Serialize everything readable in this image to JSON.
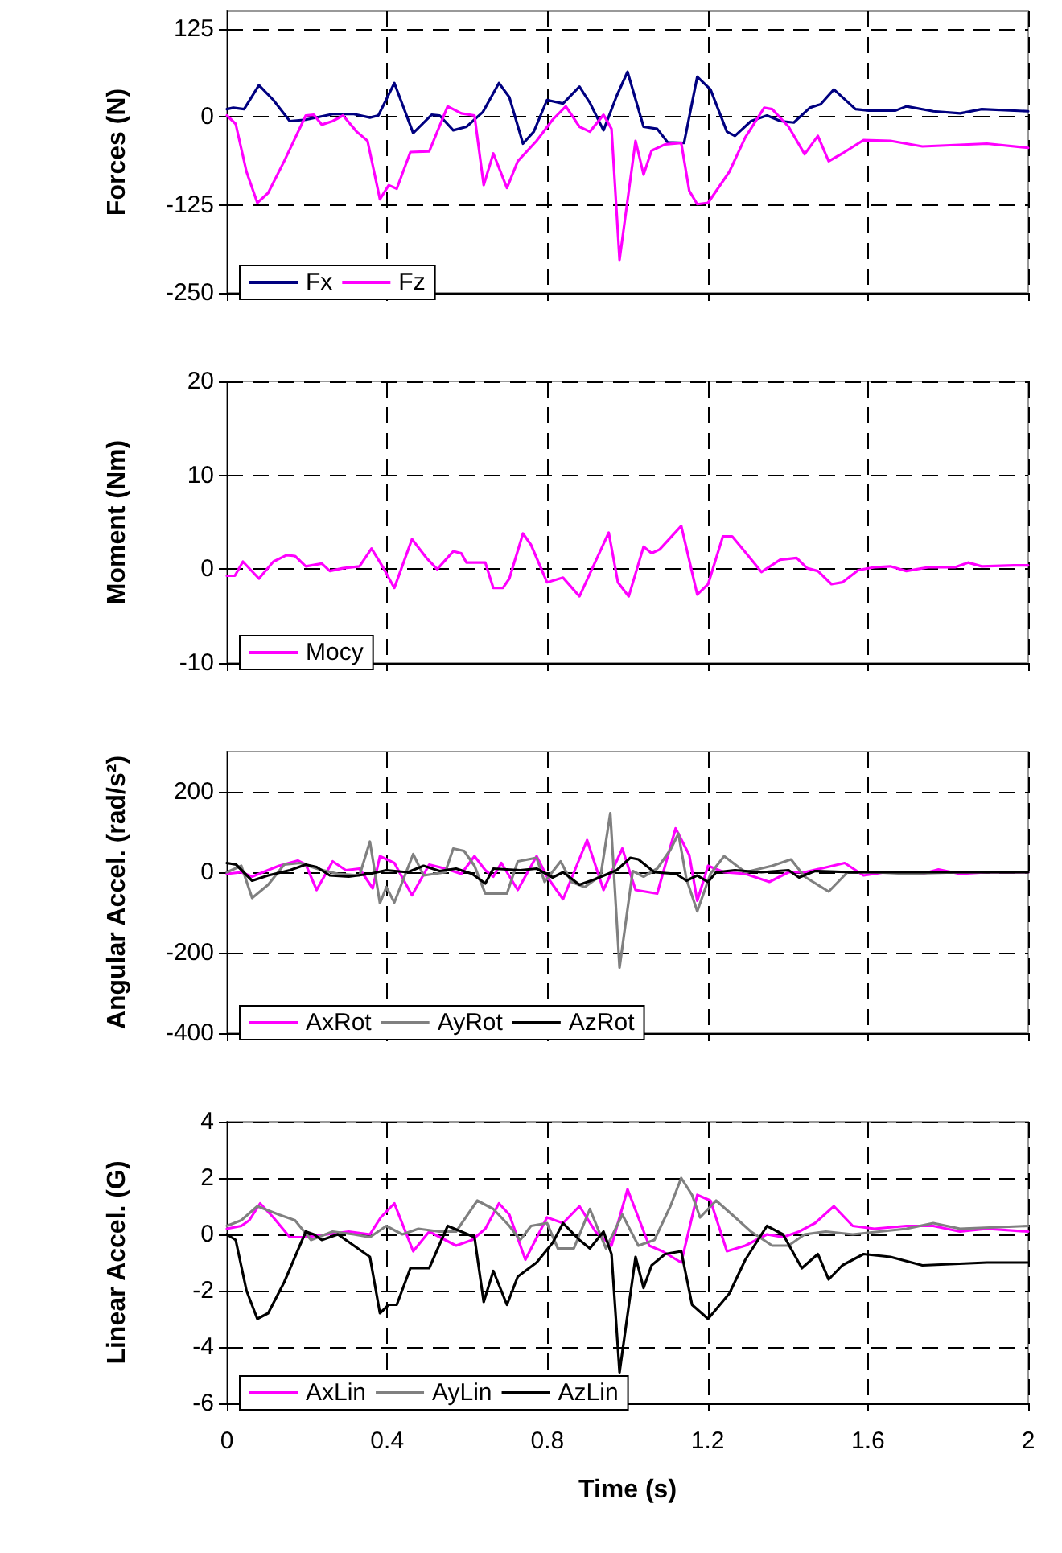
{
  "chart_data": [
    {
      "type": "line",
      "ylabel": "Forces (N)",
      "xlim": [
        0,
        2
      ],
      "xticks": [
        0,
        0.4,
        0.8,
        1.2,
        1.6,
        2
      ],
      "ylim": [
        -250,
        150
      ],
      "yticks": [
        -250,
        -125,
        0,
        125
      ],
      "grid": true,
      "legend": "bottom left",
      "tick_labels": "y",
      "marker": "none",
      "line_style": "solid",
      "series": [
        {
          "name": "Fx",
          "color": "#000080",
          "x": [
            0,
            0.016,
            0.043,
            0.08,
            0.116,
            0.157,
            0.197,
            0.264,
            0.317,
            0.357,
            0.378,
            0.418,
            0.465,
            0.511,
            0.531,
            0.565,
            0.598,
            0.639,
            0.679,
            0.705,
            0.739,
            0.766,
            0.799,
            0.839,
            0.88,
            0.906,
            0.94,
            0.973,
            1.0,
            1.04,
            1.074,
            1.1,
            1.141,
            1.174,
            1.207,
            1.248,
            1.268,
            1.308,
            1.348,
            1.382,
            1.415,
            1.455,
            1.482,
            1.515,
            1.569,
            1.602,
            1.669,
            1.696,
            1.763,
            1.83,
            1.884,
            2.0
          ],
          "values": [
            11,
            13,
            11,
            45,
            24,
            -6,
            -4,
            4,
            4,
            -1,
            2,
            48,
            -23,
            3,
            2,
            -19,
            -14,
            7,
            48,
            28,
            -38,
            -21,
            24,
            19,
            43,
            20,
            -19,
            30,
            64,
            -14,
            -17,
            -36,
            -37,
            57,
            39,
            -21,
            -27,
            -6,
            2,
            -6,
            -8,
            13,
            18,
            39,
            11,
            9,
            9,
            15,
            8,
            5,
            11,
            8
          ]
        },
        {
          "name": "Fz",
          "color": "#ff00ff",
          "x": [
            0,
            0.022,
            0.049,
            0.076,
            0.103,
            0.143,
            0.197,
            0.217,
            0.237,
            0.264,
            0.29,
            0.324,
            0.351,
            0.382,
            0.404,
            0.424,
            0.458,
            0.505,
            0.551,
            0.585,
            0.618,
            0.641,
            0.665,
            0.699,
            0.726,
            0.773,
            0.813,
            0.846,
            0.88,
            0.906,
            0.94,
            0.96,
            0.98,
            1.02,
            1.04,
            1.06,
            1.094,
            1.134,
            1.154,
            1.174,
            1.201,
            1.254,
            1.294,
            1.341,
            1.361,
            1.402,
            1.442,
            1.475,
            1.502,
            1.536,
            1.589,
            1.656,
            1.736,
            1.897,
            2.0
          ],
          "values": [
            2,
            -10,
            -78,
            -122,
            -108,
            -63,
            2,
            3,
            -11,
            -6,
            2,
            -21,
            -34,
            -117,
            -97,
            -102,
            -50,
            -49,
            15,
            5,
            2,
            -97,
            -52,
            -101,
            -63,
            -34,
            -4,
            15,
            -14,
            -21,
            3,
            -17,
            -203,
            -34,
            -82,
            -48,
            -39,
            -37,
            -105,
            -124,
            -122,
            -78,
            -29,
            13,
            11,
            -14,
            -53,
            -27,
            -63,
            -52,
            -33,
            -34,
            -42,
            -38,
            -44
          ]
        }
      ]
    },
    {
      "type": "line",
      "ylabel": "Moment (Nm)",
      "xlim": [
        0,
        2
      ],
      "xticks": [
        0,
        0.4,
        0.8,
        1.2,
        1.6,
        2
      ],
      "ylim": [
        -10,
        20
      ],
      "yticks": [
        -10,
        0,
        10,
        20
      ],
      "grid": true,
      "legend": "bottom left",
      "tick_labels": "y",
      "marker": "none",
      "line_style": "solid",
      "series": [
        {
          "name": "Mocy",
          "color": "#ff00ff",
          "x": [
            0,
            0.02,
            0.04,
            0.08,
            0.116,
            0.149,
            0.17,
            0.197,
            0.237,
            0.257,
            0.29,
            0.331,
            0.361,
            0.391,
            0.418,
            0.462,
            0.498,
            0.525,
            0.565,
            0.585,
            0.598,
            0.645,
            0.665,
            0.689,
            0.705,
            0.739,
            0.759,
            0.799,
            0.839,
            0.88,
            0.953,
            0.976,
            1.003,
            1.04,
            1.06,
            1.08,
            1.134,
            1.174,
            1.201,
            1.238,
            1.261,
            1.294,
            1.334,
            1.381,
            1.422,
            1.448,
            1.475,
            1.509,
            1.536,
            1.576,
            1.616,
            1.656,
            1.696,
            1.75,
            1.817,
            1.85,
            1.884,
            1.964,
            2.0
          ],
          "values": [
            -0.7,
            -0.7,
            0.8,
            -1.0,
            0.8,
            1.5,
            1.4,
            0.3,
            0.6,
            -0.2,
            0.1,
            0.3,
            2.2,
            0.1,
            -2.0,
            3.2,
            1.2,
            0.0,
            1.9,
            1.7,
            0.7,
            0.7,
            -2.0,
            -2.0,
            -1.0,
            3.8,
            2.6,
            -1.4,
            -0.9,
            -2.9,
            3.9,
            -1.4,
            -2.9,
            2.4,
            1.7,
            2.1,
            4.6,
            -2.7,
            -1.6,
            3.5,
            3.5,
            1.8,
            -0.3,
            1.0,
            1.2,
            0.1,
            -0.2,
            -1.6,
            -1.4,
            -0.1,
            0.2,
            0.3,
            -0.2,
            0.2,
            0.2,
            0.7,
            0.3,
            0.4,
            0.4
          ]
        }
      ]
    },
    {
      "type": "line",
      "ylabel": "Angular Accel. (rad/s²)",
      "xlim": [
        0,
        2
      ],
      "xticks": [
        0,
        0.4,
        0.8,
        1.2,
        1.6,
        2
      ],
      "ylim": [
        -400,
        300
      ],
      "yticks": [
        -400,
        -200,
        0,
        200
      ],
      "grid": true,
      "legend": "bottom left",
      "tick_labels": "y",
      "marker": "none",
      "line_style": "solid",
      "series": [
        {
          "name": "AxRot",
          "color": "#ff00ff",
          "x": [
            0,
            0.036,
            0.063,
            0.09,
            0.13,
            0.177,
            0.197,
            0.224,
            0.264,
            0.297,
            0.331,
            0.364,
            0.382,
            0.418,
            0.462,
            0.505,
            0.545,
            0.585,
            0.618,
            0.645,
            0.665,
            0.685,
            0.726,
            0.773,
            0.799,
            0.839,
            0.899,
            0.94,
            0.987,
            1.02,
            1.074,
            1.12,
            1.154,
            1.174,
            1.201,
            1.241,
            1.294,
            1.354,
            1.402,
            1.442,
            1.482,
            1.542,
            1.589,
            1.643,
            1.736,
            1.776,
            1.83,
            1.897,
            2.0
          ],
          "values": [
            -4,
            0,
            -11,
            0,
            16,
            29,
            19,
            -44,
            27,
            5,
            9,
            -40,
            40,
            23,
            -57,
            19,
            9,
            -4,
            40,
            5,
            -11,
            23,
            -44,
            40,
            -11,
            -67,
            80,
            -44,
            59,
            -44,
            -53,
            109,
            43,
            -71,
            16,
            0,
            -4,
            -24,
            0,
            0,
            9,
            23,
            -8,
            0,
            -4,
            7,
            -4,
            0,
            0
          ]
        },
        {
          "name": "AyRot",
          "color": "#808080",
          "x": [
            0,
            0.036,
            0.063,
            0.103,
            0.143,
            0.183,
            0.224,
            0.277,
            0.331,
            0.357,
            0.382,
            0.398,
            0.418,
            0.465,
            0.491,
            0.545,
            0.565,
            0.592,
            0.618,
            0.645,
            0.699,
            0.726,
            0.773,
            0.793,
            0.833,
            0.86,
            0.893,
            0.933,
            0.957,
            0.98,
            1.013,
            1.04,
            1.074,
            1.107,
            1.127,
            1.147,
            1.174,
            1.207,
            1.241,
            1.294,
            1.361,
            1.408,
            1.442,
            1.502,
            1.549,
            1.616,
            1.696,
            1.83,
            2.0
          ],
          "values": [
            0,
            16,
            -64,
            -31,
            19,
            23,
            9,
            -4,
            -8,
            76,
            -77,
            -37,
            -75,
            45,
            -8,
            0,
            59,
            53,
            16,
            -53,
            -53,
            27,
            36,
            -24,
            27,
            -24,
            -37,
            -8,
            147,
            -237,
            3,
            -11,
            9,
            56,
            96,
            -17,
            -97,
            -4,
            40,
            0,
            16,
            32,
            -11,
            -48,
            0,
            0,
            -4,
            0,
            0
          ]
        },
        {
          "name": "AzRot",
          "color": "#000000",
          "x": [
            0,
            0.023,
            0.063,
            0.103,
            0.157,
            0.197,
            0.224,
            0.257,
            0.304,
            0.357,
            0.398,
            0.451,
            0.491,
            0.531,
            0.572,
            0.612,
            0.645,
            0.665,
            0.732,
            0.773,
            0.813,
            0.839,
            0.88,
            0.92,
            0.973,
            1.007,
            1.027,
            1.067,
            1.121,
            1.147,
            1.174,
            1.201,
            1.221,
            1.268,
            1.334,
            1.402,
            1.428,
            1.468,
            1.562,
            1.696,
            2.0
          ],
          "values": [
            23,
            19,
            -21,
            -8,
            5,
            19,
            13,
            -8,
            -11,
            -4,
            5,
            0,
            16,
            3,
            9,
            -4,
            -28,
            9,
            5,
            9,
            -13,
            0,
            -31,
            -17,
            5,
            36,
            32,
            0,
            -4,
            -21,
            -8,
            -24,
            0,
            5,
            0,
            5,
            -13,
            3,
            0,
            0,
            0
          ]
        }
      ]
    },
    {
      "type": "line",
      "xlabel": "Time (s)",
      "ylabel": "Linear Accel. (G)",
      "xlim": [
        0,
        2
      ],
      "xticks": [
        0,
        0.4,
        0.8,
        1.2,
        1.6,
        2
      ],
      "ylim": [
        -6,
        4
      ],
      "yticks": [
        -6,
        -4,
        -2,
        0,
        2,
        4
      ],
      "grid": true,
      "legend": "bottom left",
      "marker": "none",
      "line_style": "solid",
      "series": [
        {
          "name": "AxLin",
          "color": "#ff00ff",
          "x": [
            0,
            0.036,
            0.056,
            0.083,
            0.116,
            0.157,
            0.197,
            0.25,
            0.304,
            0.357,
            0.384,
            0.418,
            0.465,
            0.505,
            0.545,
            0.572,
            0.612,
            0.645,
            0.679,
            0.705,
            0.745,
            0.799,
            0.839,
            0.88,
            0.92,
            0.96,
            1.0,
            1.054,
            1.087,
            1.134,
            1.174,
            1.207,
            1.248,
            1.294,
            1.348,
            1.388,
            1.428,
            1.468,
            1.515,
            1.562,
            1.616,
            1.696,
            1.763,
            1.83,
            1.897,
            2.0
          ],
          "values": [
            0.2,
            0.3,
            0.5,
            1.1,
            0.6,
            -0.1,
            -0.1,
            0.0,
            0.1,
            0.0,
            0.6,
            1.1,
            -0.6,
            0.1,
            -0.2,
            -0.4,
            -0.2,
            0.2,
            1.1,
            0.7,
            -0.9,
            0.6,
            0.4,
            1.0,
            0.1,
            -0.4,
            1.6,
            -0.4,
            -0.6,
            -1.0,
            1.4,
            1.2,
            -0.6,
            -0.4,
            0.0,
            -0.1,
            0.1,
            0.4,
            1.0,
            0.3,
            0.2,
            0.3,
            0.3,
            0.1,
            0.2,
            0.1
          ]
        },
        {
          "name": "AyLin",
          "color": "#808080",
          "x": [
            0,
            0.036,
            0.076,
            0.13,
            0.17,
            0.21,
            0.264,
            0.317,
            0.357,
            0.398,
            0.438,
            0.478,
            0.531,
            0.572,
            0.625,
            0.665,
            0.705,
            0.732,
            0.759,
            0.799,
            0.826,
            0.866,
            0.906,
            0.946,
            0.987,
            1.027,
            1.067,
            1.107,
            1.134,
            1.161,
            1.181,
            1.221,
            1.261,
            1.308,
            1.361,
            1.402,
            1.442,
            1.495,
            1.562,
            1.696,
            1.763,
            1.83,
            2.0
          ],
          "values": [
            0.3,
            0.5,
            1.0,
            0.7,
            0.5,
            -0.2,
            0.1,
            0.0,
            -0.1,
            0.3,
            0.0,
            0.2,
            0.1,
            0.1,
            1.2,
            0.9,
            0.3,
            -0.2,
            0.3,
            0.4,
            -0.5,
            -0.5,
            0.9,
            -0.5,
            0.7,
            -0.4,
            -0.2,
            1.0,
            2.0,
            1.4,
            0.6,
            1.2,
            0.7,
            0.1,
            -0.4,
            -0.4,
            0.0,
            0.1,
            0.0,
            0.2,
            0.4,
            0.2,
            0.3
          ]
        },
        {
          "name": "AzLin",
          "color": "#000000",
          "x": [
            0,
            0.022,
            0.049,
            0.076,
            0.103,
            0.143,
            0.197,
            0.217,
            0.237,
            0.277,
            0.317,
            0.357,
            0.382,
            0.404,
            0.424,
            0.458,
            0.505,
            0.551,
            0.585,
            0.618,
            0.641,
            0.665,
            0.699,
            0.726,
            0.773,
            0.813,
            0.839,
            0.88,
            0.906,
            0.94,
            0.96,
            0.98,
            1.02,
            1.04,
            1.06,
            1.094,
            1.134,
            1.161,
            1.201,
            1.254,
            1.294,
            1.348,
            1.388,
            1.435,
            1.475,
            1.502,
            1.536,
            1.589,
            1.656,
            1.736,
            1.897,
            2.0
          ],
          "values": [
            0.0,
            -0.2,
            -2.0,
            -3.0,
            -2.8,
            -1.7,
            0.1,
            0.0,
            -0.2,
            0.0,
            -0.4,
            -0.8,
            -2.8,
            -2.5,
            -2.5,
            -1.2,
            -1.2,
            0.3,
            0.1,
            -0.1,
            -2.4,
            -1.3,
            -2.5,
            -1.5,
            -1.0,
            -0.3,
            0.4,
            -0.2,
            -0.5,
            0.1,
            -0.7,
            -4.9,
            -0.8,
            -1.9,
            -1.1,
            -0.7,
            -0.6,
            -2.5,
            -3.0,
            -2.1,
            -0.9,
            0.3,
            0.0,
            -1.2,
            -0.7,
            -1.6,
            -1.1,
            -0.7,
            -0.8,
            -1.1,
            -1.0,
            -1.0
          ]
        }
      ]
    }
  ]
}
